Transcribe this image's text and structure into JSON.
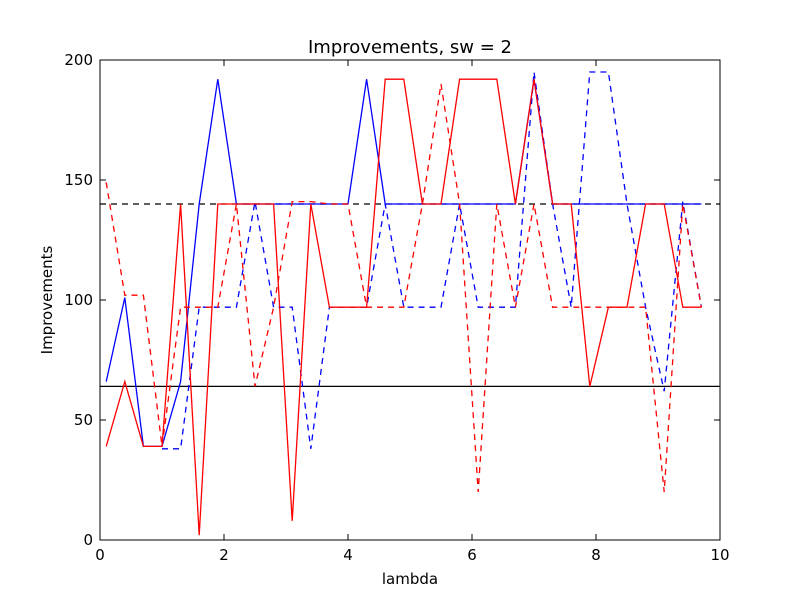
{
  "chart_data": {
    "type": "line",
    "title": "Improvements, sw = 2",
    "xlabel": "lambda",
    "ylabel": "Improvements",
    "xlim": [
      0,
      10
    ],
    "ylim": [
      0,
      200
    ],
    "xticks": [
      0,
      2,
      4,
      6,
      8,
      10
    ],
    "yticks": [
      0,
      50,
      100,
      150,
      200
    ],
    "xtick_labels": [
      "0",
      "2",
      "4",
      "6",
      "8",
      "10"
    ],
    "ytick_labels": [
      "0",
      "50",
      "100",
      "150",
      "200"
    ],
    "grid": false,
    "colors": {
      "blue": "#0000ff",
      "red": "#ff0000",
      "black": "#000000"
    },
    "series": [
      {
        "name": "blue-solid",
        "color": "#0000ff",
        "style": "solid",
        "x": [
          0.1,
          0.4,
          0.7,
          1.0,
          1.3,
          1.6,
          1.9,
          2.2,
          2.5,
          2.8,
          3.1,
          3.4,
          3.7,
          4.0,
          4.3,
          4.6,
          4.9,
          5.2,
          5.5,
          5.8,
          6.1,
          6.4,
          6.7,
          7.0,
          7.3,
          7.6,
          7.9,
          8.2,
          8.5,
          8.8,
          9.1,
          9.4,
          9.7
        ],
        "y": [
          66,
          101,
          39,
          39,
          66,
          140,
          192,
          140,
          140,
          140,
          140,
          140,
          140,
          140,
          192,
          140,
          140,
          140,
          140,
          140,
          140,
          140,
          140,
          192,
          140,
          140,
          140,
          140,
          140,
          140,
          140,
          140,
          140
        ]
      },
      {
        "name": "blue-dashed",
        "color": "#0000ff",
        "style": "dashed",
        "x": [
          1.0,
          1.3,
          1.6,
          1.9,
          2.2,
          2.5,
          2.8,
          3.1,
          3.4,
          3.7,
          4.0,
          4.3,
          4.6,
          4.9,
          5.2,
          5.5,
          5.8,
          6.1,
          6.4,
          6.7,
          7.0,
          7.3,
          7.6,
          7.9,
          8.2,
          8.5,
          8.8,
          9.1,
          9.4,
          9.7
        ],
        "y": [
          38,
          38,
          97,
          97,
          97,
          141,
          97,
          97,
          38,
          97,
          97,
          97,
          140,
          97,
          97,
          97,
          140,
          97,
          97,
          97,
          195,
          140,
          97,
          195,
          195,
          140,
          97,
          62,
          141,
          97
        ]
      },
      {
        "name": "red-solid",
        "color": "#ff0000",
        "style": "solid",
        "x": [
          0.1,
          0.4,
          0.7,
          1.0,
          1.3,
          1.6,
          1.9,
          2.2,
          2.5,
          2.8,
          3.1,
          3.4,
          3.7,
          4.0,
          4.3,
          4.6,
          4.9,
          5.2,
          5.5,
          5.8,
          6.1,
          6.4,
          6.7,
          7.0,
          7.3,
          7.6,
          7.9,
          8.2,
          8.5,
          8.8,
          9.1,
          9.4,
          9.7
        ],
        "y": [
          39,
          66,
          39,
          39,
          140,
          2,
          140,
          140,
          140,
          140,
          8,
          140,
          97,
          97,
          97,
          192,
          192,
          140,
          140,
          192,
          192,
          192,
          140,
          192,
          140,
          140,
          64,
          97,
          97,
          140,
          140,
          97,
          97
        ]
      },
      {
        "name": "red-dashed",
        "color": "#ff0000",
        "style": "dashed",
        "x": [
          0.1,
          0.4,
          0.7,
          1.0,
          1.3,
          1.6,
          1.9,
          2.2,
          2.5,
          2.8,
          3.1,
          3.4,
          3.7,
          4.0,
          4.3,
          4.6,
          4.9,
          5.2,
          5.5,
          5.8,
          6.1,
          6.4,
          6.7,
          7.0,
          7.3,
          7.6,
          7.9,
          8.2,
          8.5,
          8.8,
          9.1,
          9.4,
          9.7
        ],
        "y": [
          149,
          102,
          102,
          39,
          97,
          97,
          97,
          140,
          64,
          97,
          141,
          141,
          140,
          140,
          97,
          97,
          97,
          140,
          190,
          140,
          20,
          140,
          97,
          140,
          97,
          97,
          97,
          97,
          97,
          97,
          20,
          140,
          97
        ]
      }
    ],
    "reference_lines": [
      {
        "name": "baseline-upper",
        "y": 140,
        "color": "#000000",
        "style": "dashed"
      },
      {
        "name": "baseline-lower",
        "y": 64,
        "color": "#000000",
        "style": "solid"
      }
    ]
  }
}
